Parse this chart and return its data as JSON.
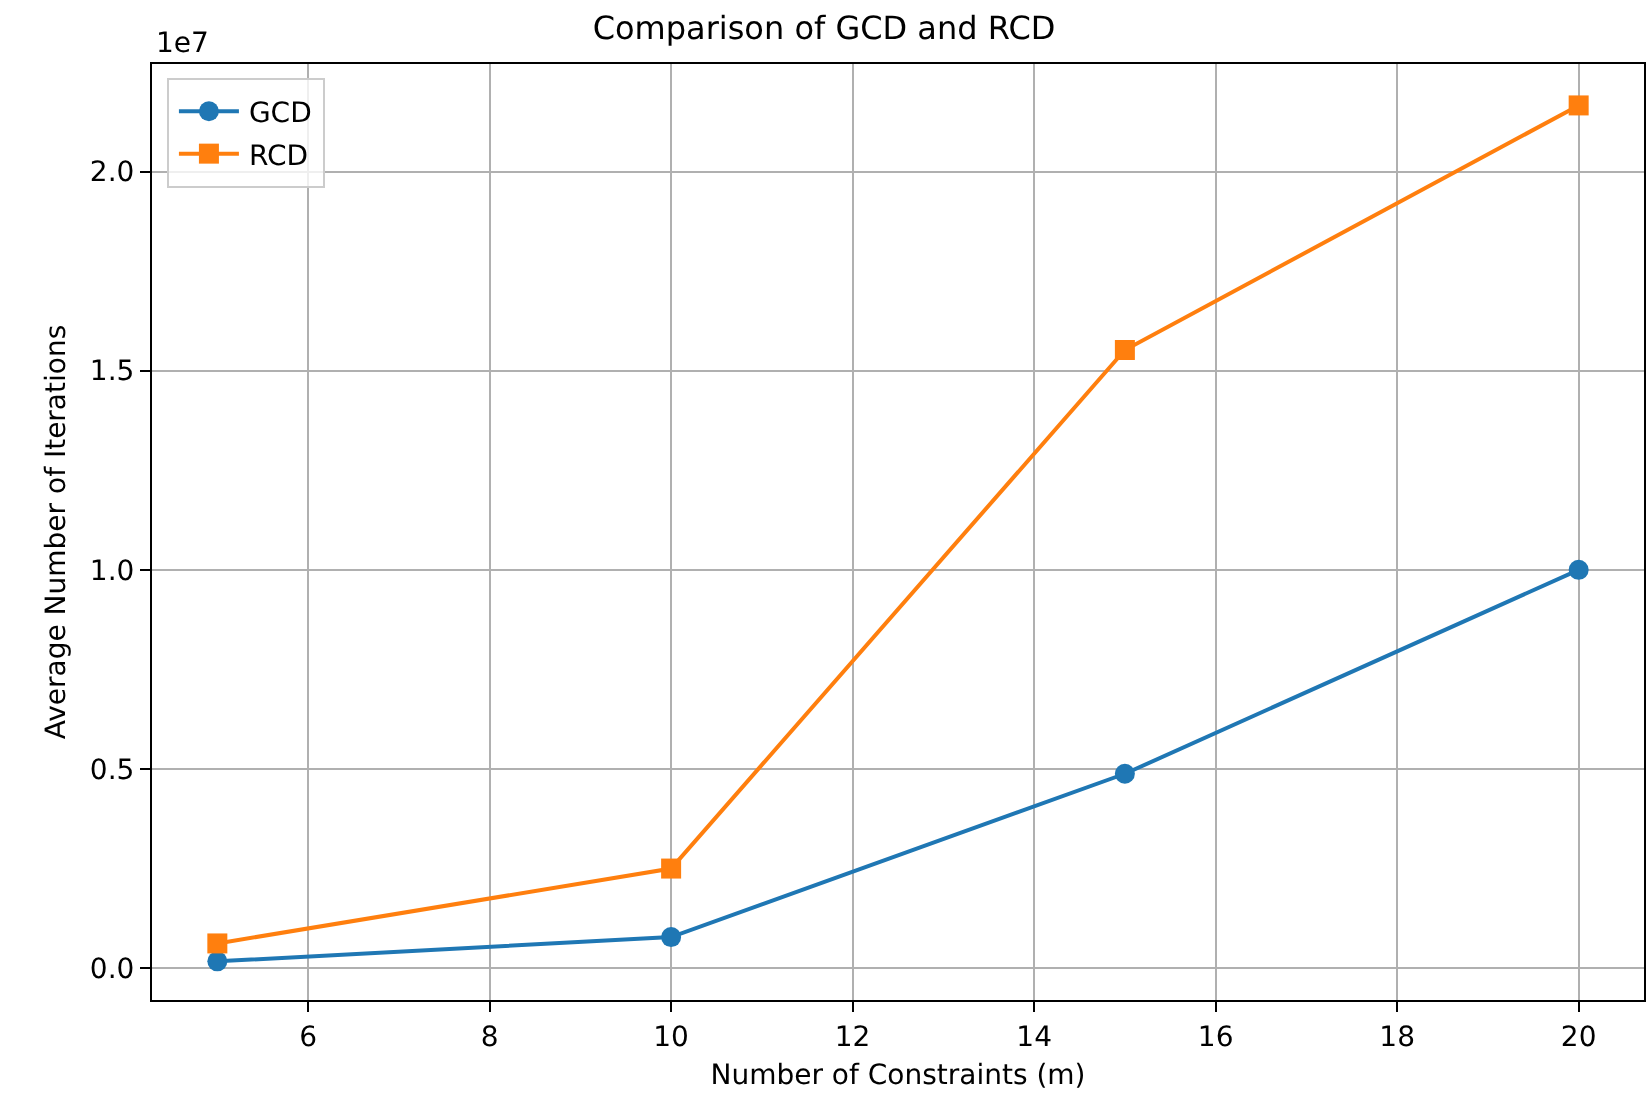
{
  "chart_data": {
    "type": "line",
    "title": "Comparison of GCD and RCD",
    "xlabel": "Number of Constraints (m)",
    "ylabel": "Average Number of Iterations",
    "x": [
      5,
      10,
      15,
      20
    ],
    "series": [
      {
        "name": "GCD",
        "color": "#1f77b4",
        "marker": "circle",
        "values": [
          0.017,
          0.078,
          0.488,
          1.0
        ]
      },
      {
        "name": "RCD",
        "color": "#ff7f0e",
        "marker": "square",
        "values": [
          0.062,
          0.25,
          1.552,
          2.166
        ]
      }
    ],
    "xlim": [
      4.28,
      20.72
    ],
    "ylim": [
      -0.08,
      2.27
    ],
    "xticks": [
      6,
      8,
      10,
      12,
      14,
      16,
      18,
      20
    ],
    "yticks": [
      {
        "value": 0,
        "label": "0.0"
      },
      0.5,
      {
        "value": 1,
        "label": "1.0"
      },
      1.5,
      {
        "value": 2,
        "label": "2.0"
      }
    ],
    "annotations": [
      "1e7"
    ],
    "grid": true,
    "legend": "top left",
    "line_style": "solid"
  }
}
